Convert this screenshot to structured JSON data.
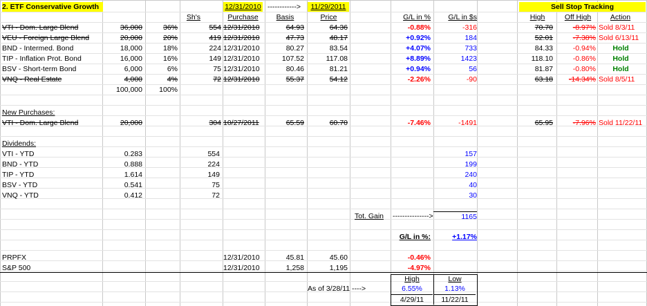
{
  "title": "2. ETF Conservative Growth",
  "header": {
    "shares": "Sh's",
    "start_date": "12/31/2010",
    "arrow": "------------>",
    "end_date": "11/29/2011",
    "purchase": "Purchase",
    "basis": "Basis",
    "price": "Price",
    "gl_pct": "G/L in %",
    "gl_dollars": "G/L in $s"
  },
  "stop_tracking": {
    "title": "Sell Stop Tracking",
    "high": "High",
    "off_high": "Off High",
    "action": "Action"
  },
  "holdings": [
    {
      "name": "VTI - Dom. Large Blend",
      "amount": "36,000",
      "pct": "36%",
      "shares": "554",
      "purchase": "12/31/2010",
      "basis": "64.93",
      "price": "64.36",
      "gl_pct": "-0.88%",
      "gl_dollars": "-316",
      "high": "70.70",
      "off_high": "-8.97%",
      "action": "Sold 8/3/11"
    },
    {
      "name": "VEU - Foreign Large Blend",
      "amount": "20,000",
      "pct": "20%",
      "shares": "419",
      "purchase": "12/31/2010",
      "basis": "47.73",
      "price": "48.17",
      "gl_pct": "+0.92%",
      "gl_dollars": "184",
      "high": "52.01",
      "off_high": "-7.38%",
      "action": "Sold 6/13/11"
    },
    {
      "name": "BND - Intermed. Bond",
      "amount": "18,000",
      "pct": "18%",
      "shares": "224",
      "purchase": "12/31/2010",
      "basis": "80.27",
      "price": "83.54",
      "gl_pct": "+4.07%",
      "gl_dollars": "733",
      "high": "84.33",
      "off_high": "-0.94%",
      "action": "Hold"
    },
    {
      "name": "TIP - Inflation Prot. Bond",
      "amount": "16,000",
      "pct": "16%",
      "shares": "149",
      "purchase": "12/31/2010",
      "basis": "107.52",
      "price": "117.08",
      "gl_pct": "+8.89%",
      "gl_dollars": "1423",
      "high": "118.10",
      "off_high": "-0.86%",
      "action": "Hold"
    },
    {
      "name": "BSV - Short-term Bond",
      "amount": "6,000",
      "pct": "6%",
      "shares": "75",
      "purchase": "12/31/2010",
      "basis": "80.46",
      "price": "81.21",
      "gl_pct": "+0.94%",
      "gl_dollars": "56",
      "high": "81.87",
      "off_high": "-0.80%",
      "action": "Hold"
    },
    {
      "name": "VNQ - Real Estate",
      "amount": "4,000",
      "pct": "4%",
      "shares": "72",
      "purchase": "12/31/2010",
      "basis": "55.37",
      "price": "54.12",
      "gl_pct": "-2.26%",
      "gl_dollars": "-90",
      "high": "63.18",
      "off_high": "-14.34%",
      "action": "Sold 8/5/11"
    }
  ],
  "totals": {
    "amount": "100,000",
    "pct": "100%"
  },
  "new_purchases": {
    "label": "New Purchases:",
    "row": {
      "name": "VTI - Dom. Large Blend",
      "amount": "20,000",
      "shares": "304",
      "purchase": "10/27/2011",
      "basis": "65.59",
      "price": "60.70",
      "gl_pct": "-7.46%",
      "gl_dollars": "-1491",
      "high": "65.95",
      "off_high": "-7.96%",
      "action": "Sold 11/22/11"
    }
  },
  "dividends": {
    "label": "Dividends:",
    "rows": [
      {
        "name": "VTI - YTD",
        "per_share": "0.283",
        "shares": "554",
        "total": "157"
      },
      {
        "name": "BND - YTD",
        "per_share": "0.888",
        "shares": "224",
        "total": "199"
      },
      {
        "name": "TIP - YTD",
        "per_share": "1.614",
        "shares": "149",
        "total": "240"
      },
      {
        "name": "BSV - YTD",
        "per_share": "0.541",
        "shares": "75",
        "total": "40"
      },
      {
        "name": "VNQ - YTD",
        "per_share": "0.412",
        "shares": "72",
        "total": "30"
      }
    ]
  },
  "summary": {
    "tot_gain_label": "Tot. Gain",
    "tot_gain_arrow": "--------------->",
    "tot_gain": "1165",
    "gl_label": "G/L in %:",
    "gl_value": "+1.17%"
  },
  "benchmarks": [
    {
      "name": "PRPFX",
      "purchase": "12/31/2010",
      "basis": "45.81",
      "price": "45.60",
      "gl_pct": "-0.46%"
    },
    {
      "name": "S&P 500",
      "purchase": "12/31/2010",
      "basis": "1,258",
      "price": "1,195",
      "gl_pct": "-4.97%"
    }
  ],
  "range": {
    "as_of": "As of 3/28/11 ---->",
    "high_label": "High",
    "low_label": "Low",
    "high_value": "6.55%",
    "low_value": "1.13%",
    "high_date": "4/29/11",
    "low_date": "11/22/11"
  },
  "colors": {
    "highlight": "#ffff00",
    "negative": "#ff0000",
    "positive": "#0000ff",
    "hold": "#008000",
    "grid": "#c8c8c8"
  }
}
